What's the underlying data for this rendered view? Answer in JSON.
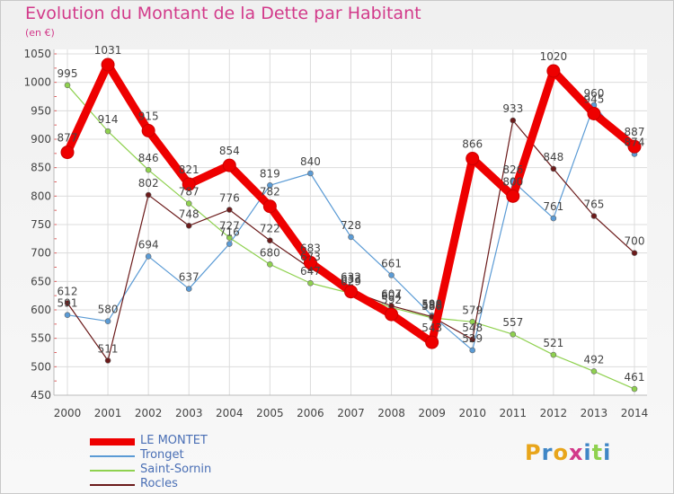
{
  "header": {
    "title": "Evolution du Montant de la Dette par Habitant",
    "subtitle": "(en €)"
  },
  "colors": {
    "title": "#d23a8a",
    "axis_text": "#444444",
    "grid": "#dcdcdc",
    "legend_text": "#4a6fb5"
  },
  "chart_data": {
    "type": "line",
    "title": "Evolution du Montant de la Dette par Habitant",
    "subtitle": "(en €)",
    "xlabel": "",
    "ylabel": "",
    "categories": [
      "2000",
      "2001",
      "2002",
      "2003",
      "2004",
      "2005",
      "2006",
      "2007",
      "2008",
      "2009",
      "2010",
      "2011",
      "2012",
      "2013",
      "2014"
    ],
    "ylim": [
      450,
      1050
    ],
    "yticks": [
      450,
      500,
      550,
      600,
      650,
      700,
      750,
      800,
      850,
      900,
      950,
      1000,
      1050
    ],
    "grid": true,
    "legend_position": "bottom-left",
    "series": [
      {
        "name": "LE MONTET",
        "color": "#ee0000",
        "width": 9,
        "dot": 7,
        "values": [
          877,
          1031,
          915,
          821,
          854,
          782,
          683,
          632,
          592,
          543,
          866,
          800,
          1020,
          945,
          887
        ]
      },
      {
        "name": "Tronget",
        "color": "#5b9bd5",
        "width": 1.2,
        "dot": 3,
        "values": [
          591,
          580,
          694,
          637,
          716,
          819,
          840,
          728,
          661,
          590,
          529,
          826,
          761,
          960,
          874
        ]
      },
      {
        "name": "Saint-Sornin",
        "color": "#8fd14f",
        "width": 1.2,
        "dot": 3,
        "values": [
          995,
          914,
          846,
          787,
          727,
          680,
          647,
          629,
          604,
          586,
          579,
          557,
          521,
          492,
          461
        ]
      },
      {
        "name": "Rocles",
        "color": "#6b1a1a",
        "width": 1.2,
        "dot": 3,
        "values": [
          612,
          511,
          802,
          748,
          776,
          722,
          673,
          633,
          607,
          588,
          548,
          933,
          848,
          765,
          700
        ]
      }
    ]
  },
  "legend": {
    "items": [
      {
        "label": "LE MONTET"
      },
      {
        "label": "Tronget"
      },
      {
        "label": "Saint-Sornin"
      },
      {
        "label": "Rocles"
      }
    ]
  },
  "logo": {
    "text": "Proxiti",
    "letter_colors": [
      "#e8a51b",
      "#3f86c6",
      "#e8a51b",
      "#d23a8a",
      "#3f86c6",
      "#8fd14f",
      "#3f86c6"
    ]
  }
}
